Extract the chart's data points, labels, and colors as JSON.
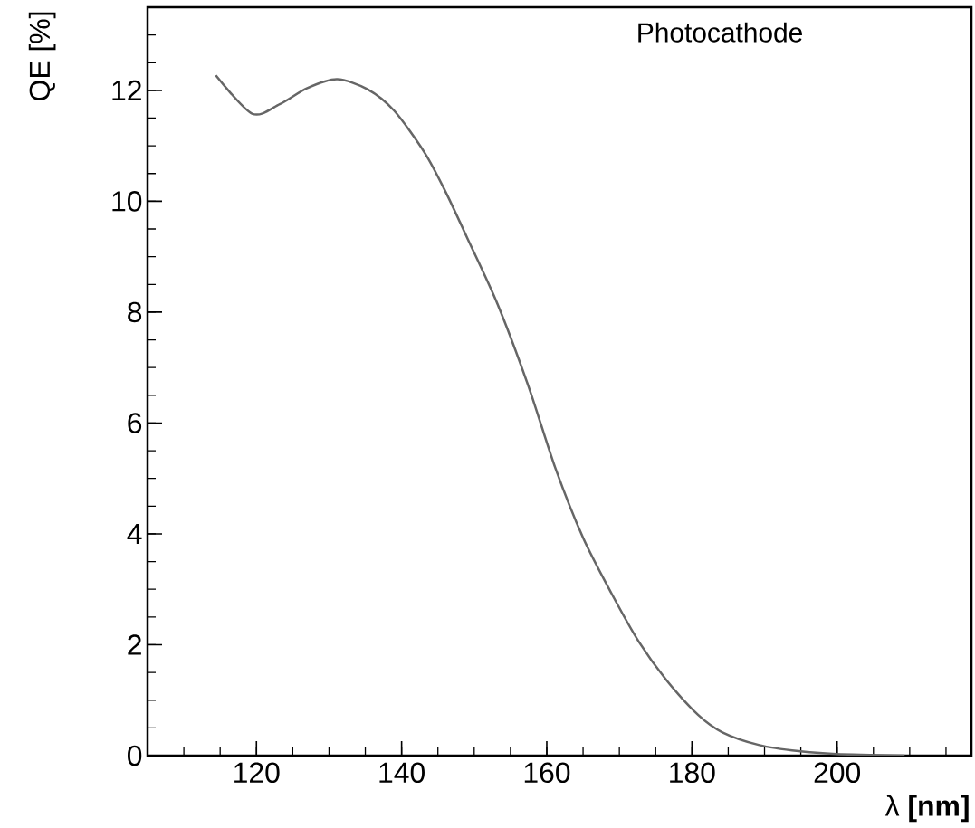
{
  "chart_data": {
    "type": "line",
    "xlabel": "λ **[nm]**",
    "ylabel": "QE [%]",
    "annotations": [
      {
        "text": "Photocathode"
      }
    ],
    "x": [
      114.4,
      119.4,
      123.2,
      127.0,
      131.1,
      135.3,
      139.0,
      143.2,
      146.1,
      149.0,
      153.2,
      157.4,
      161.2,
      165.0,
      168.9,
      172.7,
      176.5,
      180.8,
      184.2,
      189.3,
      194.7,
      199.9,
      209.3
    ],
    "series": [
      {
        "color": "#666666",
        "values": [
          12.27,
          11.58,
          11.75,
          12.04,
          12.2,
          12.02,
          11.63,
          10.87,
          10.16,
          9.35,
          8.15,
          6.69,
          5.18,
          3.93,
          2.93,
          2.05,
          1.36,
          0.74,
          0.42,
          0.19,
          0.08,
          0.03,
          0.0
        ]
      }
    ],
    "xlim": [
      105,
      218.5
    ],
    "ylim": [
      0,
      13.5
    ],
    "xticks": [
      120,
      140,
      160,
      180,
      200
    ],
    "yticks": [
      0,
      2,
      4,
      6,
      8,
      10,
      12
    ]
  }
}
